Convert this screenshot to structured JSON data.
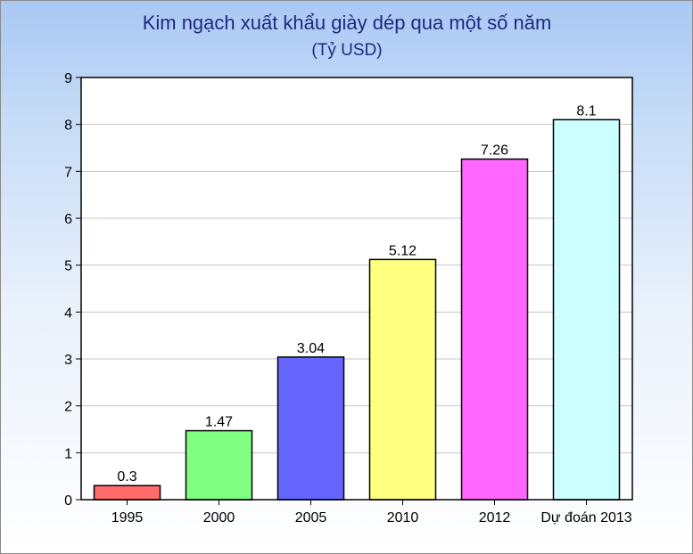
{
  "chart_data": {
    "type": "bar",
    "title": "Kim ngạch xuất khẩu giày dép qua một số năm",
    "subtitle": "(Tỷ USD)",
    "categories": [
      "1995",
      "2000",
      "2005",
      "2010",
      "2012",
      "Dự đoán 2013"
    ],
    "values": [
      0.3,
      1.47,
      3.04,
      5.12,
      7.26,
      8.1
    ],
    "value_labels": [
      "0.3",
      "1.47",
      "3.04",
      "5.12",
      "7.26",
      "8.1"
    ],
    "colors": [
      "#ff6b6b",
      "#80ff80",
      "#6666ff",
      "#ffff80",
      "#ff66ff",
      "#ccffff"
    ],
    "ylim": [
      0,
      9
    ],
    "yticks": [
      0,
      1,
      2,
      3,
      4,
      5,
      6,
      7,
      8,
      9
    ],
    "grid": true,
    "legend": "none"
  }
}
